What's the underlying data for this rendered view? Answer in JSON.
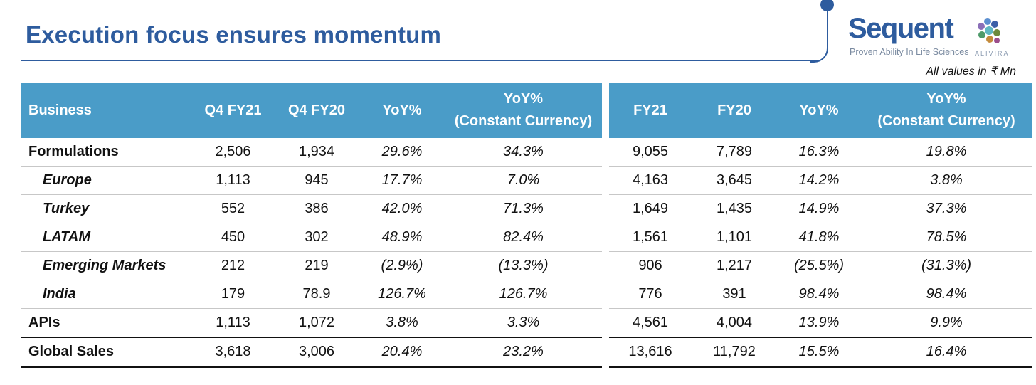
{
  "header": {
    "title": "Execution focus ensures momentum",
    "units_note": "All values in ₹ Mn"
  },
  "logo": {
    "name": "Sequent",
    "tagline": "Proven Ability In Life Sciences",
    "sub_brand": "ALIVIRA"
  },
  "colors": {
    "brand_blue": "#2e5c9e",
    "header_fill": "#4a9cc8"
  },
  "table": {
    "headers_quarter": [
      "Business",
      "Q4 FY21",
      "Q4 FY20",
      "YoY%",
      "YoY%",
      "(Constant Currency)"
    ],
    "headers_year": [
      "FY21",
      "FY20",
      "YoY%",
      "YoY%",
      "(Constant Currency)"
    ],
    "rows": [
      {
        "business": "Formulations",
        "q4fy21": "2,506",
        "q4fy20": "1,934",
        "yoy_q": "29.6%",
        "cc_q": "34.3%",
        "fy21": "9,055",
        "fy20": "7,789",
        "yoy_y": "16.3%",
        "cc_y": "19.8%"
      },
      {
        "business": "Europe",
        "q4fy21": "1,113",
        "q4fy20": "945",
        "yoy_q": "17.7%",
        "cc_q": "7.0%",
        "fy21": "4,163",
        "fy20": "3,645",
        "yoy_y": "14.2%",
        "cc_y": "3.8%"
      },
      {
        "business": "Turkey",
        "q4fy21": "552",
        "q4fy20": "386",
        "yoy_q": "42.0%",
        "cc_q": "71.3%",
        "fy21": "1,649",
        "fy20": "1,435",
        "yoy_y": "14.9%",
        "cc_y": "37.3%"
      },
      {
        "business": "LATAM",
        "q4fy21": "450",
        "q4fy20": "302",
        "yoy_q": "48.9%",
        "cc_q": "82.4%",
        "fy21": "1,561",
        "fy20": "1,101",
        "yoy_y": "41.8%",
        "cc_y": "78.5%"
      },
      {
        "business": "Emerging Markets",
        "q4fy21": "212",
        "q4fy20": "219",
        "yoy_q": "(2.9%)",
        "cc_q": "(13.3%)",
        "fy21": "906",
        "fy20": "1,217",
        "yoy_y": "(25.5%)",
        "cc_y": "(31.3%)"
      },
      {
        "business": "India",
        "q4fy21": "179",
        "q4fy20": "78.9",
        "yoy_q": "126.7%",
        "cc_q": "126.7%",
        "fy21": "776",
        "fy20": "391",
        "yoy_y": "98.4%",
        "cc_y": "98.4%"
      },
      {
        "business": "APIs",
        "q4fy21": "1,113",
        "q4fy20": "1,072",
        "yoy_q": "3.8%",
        "cc_q": "3.3%",
        "fy21": "4,561",
        "fy20": "4,004",
        "yoy_y": "13.9%",
        "cc_y": "9.9%"
      },
      {
        "business": "Global Sales",
        "q4fy21": "3,618",
        "q4fy20": "3,006",
        "yoy_q": "20.4%",
        "cc_q": "23.2%",
        "fy21": "13,616",
        "fy20": "11,792",
        "yoy_y": "15.5%",
        "cc_y": "16.4%"
      }
    ]
  }
}
